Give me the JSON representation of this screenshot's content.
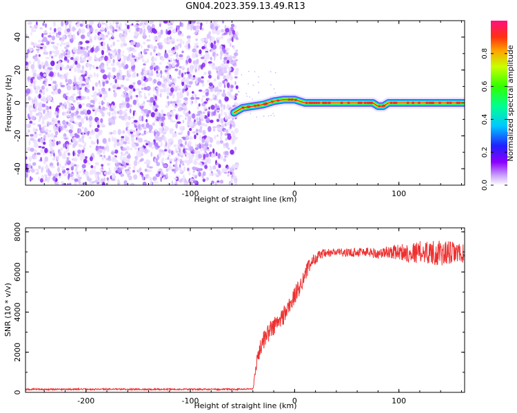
{
  "title": "GN04.2023.359.13.49.R13",
  "colors": {
    "noise": "#7a1ff0",
    "signal_line": "#ee3030",
    "axis": "#000000"
  },
  "colorbar": {
    "label": "Normalized spectral amplitude",
    "ticks": [
      "0.0",
      "0.2",
      "0.4",
      "0.6",
      "0.8"
    ],
    "tick_values": [
      0.0,
      0.2,
      0.4,
      0.6,
      0.8
    ],
    "range": [
      0,
      1
    ]
  },
  "chart_data": [
    {
      "type": "heatmap",
      "name_in_image": "spectrogram",
      "xlabel": "Height of straight line (km)",
      "ylabel": "Frequency (Hz)",
      "xlim": [
        -258,
        163
      ],
      "ylim": [
        -50,
        50
      ],
      "xticks": [
        -200,
        -100,
        0,
        100
      ],
      "xtick_labels": [
        "-200",
        "-100",
        "0",
        "100"
      ],
      "yticks": [
        -40,
        -20,
        0,
        20,
        40
      ],
      "ytick_labels": [
        "-40",
        "-20",
        "0",
        "20",
        "40"
      ],
      "noise_region": {
        "x_from": -258,
        "x_to": -55,
        "amplitude": "0.0-0.25"
      },
      "signal_track": {
        "x": [
          -58,
          -50,
          -40,
          -30,
          -20,
          -10,
          0,
          10,
          20,
          40,
          60,
          75,
          80,
          85,
          90,
          100,
          120,
          140,
          163
        ],
        "y": [
          -6,
          -3,
          -2,
          -1,
          1,
          2,
          2,
          0,
          0,
          0,
          0,
          0,
          -2,
          -2,
          0,
          0,
          0,
          0,
          0
        ],
        "peak_amplitude": 1.0
      },
      "grid": false,
      "colorscale": "rainbow"
    },
    {
      "type": "line",
      "name_in_image": "snr",
      "xlabel": "Height of straight line (km)",
      "ylabel": "SNR (10 * v/v)",
      "xlim": [
        -258,
        163
      ],
      "ylim": [
        0,
        8200
      ],
      "xticks": [
        -200,
        -100,
        0,
        100
      ],
      "xtick_labels": [
        "-200",
        "-100",
        "0",
        "100"
      ],
      "yticks": [
        0,
        2000,
        4000,
        6000,
        8000
      ],
      "ytick_labels": [
        "0",
        "2000",
        "4000",
        "6000",
        "8000"
      ],
      "series": [
        {
          "x": [
            -258,
            -220,
            -180,
            -140,
            -100,
            -60,
            -40,
            -38,
            -35,
            -30,
            -25,
            -20,
            -15,
            -10,
            -5,
            0,
            5,
            10,
            15,
            20,
            25,
            30,
            40,
            50,
            60,
            70,
            80,
            90,
            100,
            110,
            120,
            130,
            140,
            150,
            163
          ],
          "values": [
            150,
            150,
            160,
            150,
            150,
            150,
            170,
            900,
            1900,
            2600,
            3000,
            3300,
            3500,
            3900,
            4300,
            4800,
            5300,
            5900,
            6400,
            6700,
            6850,
            6900,
            7000,
            6950,
            7000,
            7000,
            6900,
            7000,
            7000,
            6950,
            7000,
            7000,
            6900,
            6950,
            6900
          ],
          "noise_amplitude": [
            40,
            40,
            40,
            40,
            40,
            40,
            40,
            250,
            400,
            450,
            500,
            500,
            500,
            500,
            500,
            450,
            450,
            400,
            350,
            300,
            250,
            250,
            200,
            200,
            250,
            250,
            250,
            300,
            400,
            500,
            550,
            600,
            650,
            600,
            450
          ]
        }
      ],
      "grid": false
    }
  ]
}
